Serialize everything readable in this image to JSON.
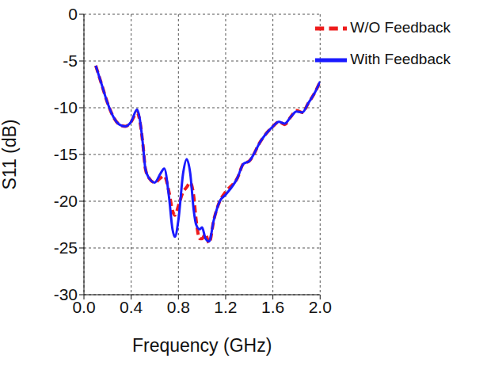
{
  "chart_data": {
    "type": "line",
    "x_label": "Frequency (GHz)",
    "y_label": "S11 (dB)",
    "x": [
      0.1,
      0.15,
      0.2,
      0.25,
      0.3,
      0.35,
      0.4,
      0.45,
      0.47,
      0.5,
      0.52,
      0.55,
      0.6,
      0.65,
      0.68,
      0.72,
      0.75,
      0.77,
      0.8,
      0.84,
      0.87,
      0.9,
      0.93,
      0.95,
      0.98,
      1.0,
      1.03,
      1.06,
      1.1,
      1.15,
      1.2,
      1.3,
      1.35,
      1.4,
      1.5,
      1.6,
      1.65,
      1.7,
      1.75,
      1.8,
      1.85,
      1.9,
      1.95,
      2.0
    ],
    "series": [
      {
        "name": "W/O Feedback",
        "color": "#ee1c1c",
        "line_style": "dashed",
        "values": [
          -5.5,
          -7.5,
          -9.5,
          -11,
          -11.8,
          -12,
          -11.5,
          -10.5,
          -11.2,
          -14,
          -16.5,
          -17.5,
          -18,
          -17.5,
          -17.3,
          -19,
          -21,
          -21.5,
          -20.5,
          -19,
          -18.5,
          -18,
          -19.5,
          -22,
          -24,
          -24,
          -23.5,
          -24.5,
          -22,
          -20,
          -19,
          -17.5,
          -16,
          -15.7,
          -13.5,
          -12,
          -11.5,
          -11.8,
          -11,
          -10.3,
          -10.5,
          -9.5,
          -8.5,
          -7.2
        ]
      },
      {
        "name": "With Feedback",
        "color": "#1a1aff",
        "line_style": "solid",
        "values": [
          -5.5,
          -7.5,
          -9.5,
          -11,
          -11.8,
          -12,
          -11.5,
          -10.2,
          -11,
          -14,
          -16.5,
          -17.5,
          -18,
          -17,
          -16.5,
          -19.5,
          -23,
          -23.8,
          -22,
          -17,
          -15.5,
          -17,
          -21,
          -22.5,
          -23,
          -22.8,
          -24,
          -24.3,
          -22,
          -20,
          -19.3,
          -17.5,
          -16,
          -15.7,
          -13.5,
          -12,
          -11.5,
          -11.7,
          -11,
          -10.4,
          -10.5,
          -9.5,
          -8.5,
          -7.2
        ]
      }
    ],
    "xlim": [
      0,
      2
    ],
    "xticks": [
      {
        "value": 0,
        "label": "0.0"
      },
      0.4,
      0.8,
      1.2,
      1.6,
      {
        "value": 2,
        "label": "2.0"
      }
    ],
    "ylim": [
      -30,
      0
    ],
    "yticks": [
      -30,
      -25,
      -20,
      -15,
      -10,
      -5,
      0
    ],
    "grid": true,
    "legend": "upper right"
  }
}
